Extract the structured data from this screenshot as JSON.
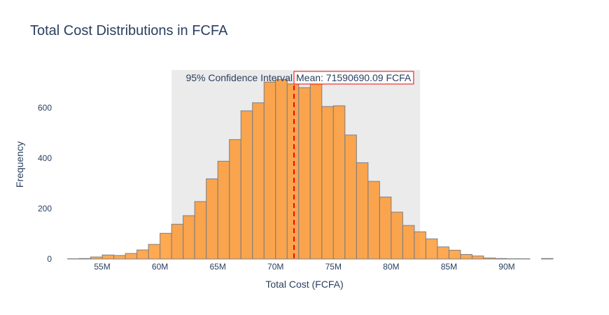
{
  "chart_data": {
    "type": "bar",
    "title": "Total Cost Distributions in FCFA",
    "xlabel": "Total Cost (FCFA)",
    "ylabel": "Frequency",
    "xlim": [
      51000000,
      94000000
    ],
    "ylim": [
      0,
      750
    ],
    "x_ticks": [
      {
        "value": 55000000,
        "label": "55M"
      },
      {
        "value": 60000000,
        "label": "60M"
      },
      {
        "value": 65000000,
        "label": "65M"
      },
      {
        "value": 70000000,
        "label": "70M"
      },
      {
        "value": 75000000,
        "label": "75M"
      },
      {
        "value": 80000000,
        "label": "80M"
      },
      {
        "value": 85000000,
        "label": "85M"
      },
      {
        "value": 90000000,
        "label": "90M"
      }
    ],
    "y_ticks": [
      {
        "value": 0,
        "label": "0"
      },
      {
        "value": 200,
        "label": "200"
      },
      {
        "value": 400,
        "label": "400"
      },
      {
        "value": 600,
        "label": "600"
      }
    ],
    "bin_width": 1000000,
    "bins_start": [
      52000000,
      53000000,
      54000000,
      55000000,
      56000000,
      57000000,
      58000000,
      59000000,
      60000000,
      61000000,
      62000000,
      63000000,
      64000000,
      65000000,
      66000000,
      67000000,
      68000000,
      69000000,
      70000000,
      71000000,
      72000000,
      73000000,
      74000000,
      75000000,
      76000000,
      77000000,
      78000000,
      79000000,
      80000000,
      81000000,
      82000000,
      83000000,
      84000000,
      85000000,
      86000000,
      87000000,
      88000000,
      89000000,
      90000000,
      91000000,
      92000000,
      93000000
    ],
    "counts": [
      1,
      2,
      8,
      16,
      14,
      22,
      36,
      58,
      102,
      138,
      172,
      228,
      318,
      388,
      474,
      588,
      620,
      702,
      712,
      695,
      680,
      740,
      605,
      608,
      492,
      382,
      308,
      246,
      186,
      133,
      108,
      80,
      48,
      35,
      18,
      12,
      4,
      2,
      1,
      1,
      0,
      2
    ],
    "bar_color": "#ff8c1a",
    "bar_outline": "#7f7f7f",
    "ci_band": {
      "x0": 61000000,
      "x1": 82500000,
      "label": "95% Confidence Interval",
      "color": "#d3d3d3"
    },
    "mean_line": {
      "value": 71590690.09,
      "label": "Mean: 71590690.09 FCFA",
      "color": "#ff0000"
    }
  }
}
